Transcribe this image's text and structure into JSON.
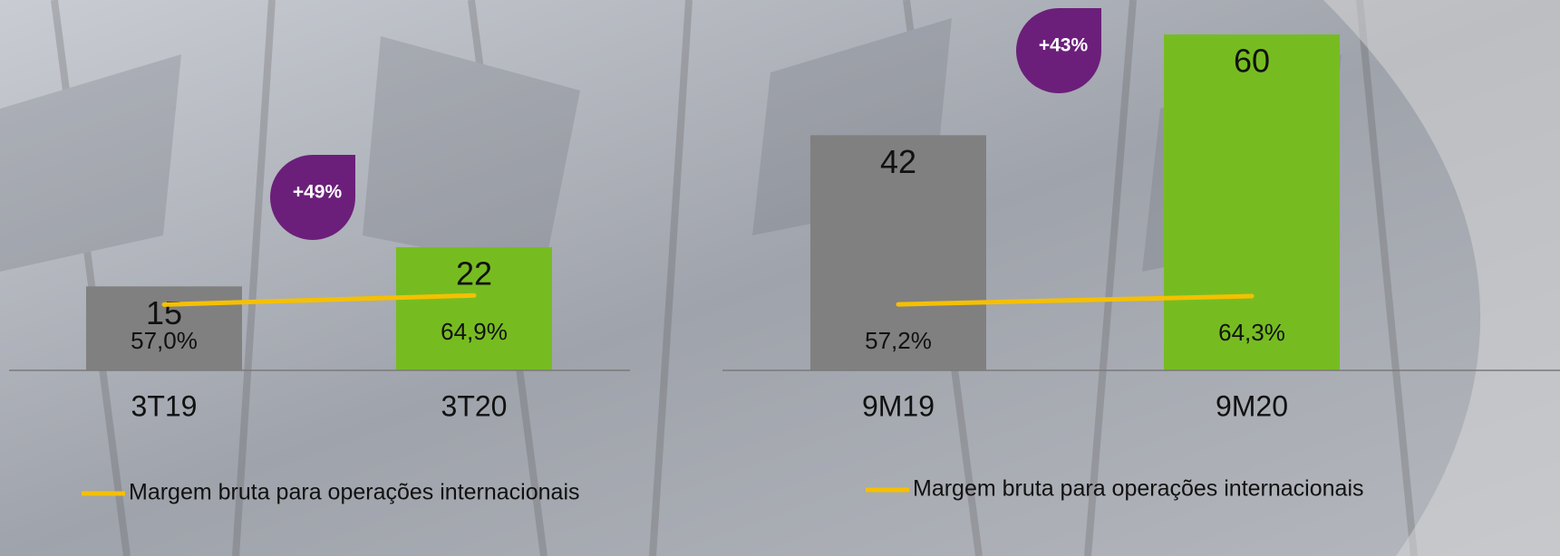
{
  "chart_data": [
    {
      "type": "bar",
      "categories": [
        "3T19",
        "3T20"
      ],
      "series": [
        {
          "name": null,
          "colors": [
            "#808080",
            "#76bc21"
          ],
          "values": [
            15,
            22
          ]
        },
        {
          "name": "Margem bruta para operações internacionais",
          "type": "line",
          "axis": "y2",
          "color": "#f5c000",
          "values": [
            57.0,
            64.9
          ],
          "value_labels": [
            "57,0%",
            "64,9%"
          ]
        }
      ],
      "annotation": "+49%",
      "annotation_color": "#6b1f7a",
      "ylim": [
        0,
        66
      ],
      "y2lim": [
        0,
        320
      ]
    },
    {
      "type": "bar",
      "categories": [
        "9M19",
        "9M20"
      ],
      "series": [
        {
          "name": null,
          "colors": [
            "#808080",
            "#76bc21"
          ],
          "values": [
            42,
            60
          ]
        },
        {
          "name": "Margem bruta para operações internacionais",
          "type": "line",
          "axis": "y2",
          "color": "#f5c000",
          "values": [
            57.2,
            64.3
          ],
          "value_labels": [
            "57,2%",
            "64,3%"
          ]
        }
      ],
      "annotation": "+43%",
      "annotation_color": "#6b1f7a",
      "ylim": [
        0,
        66
      ],
      "y2lim": [
        0,
        320
      ]
    }
  ]
}
